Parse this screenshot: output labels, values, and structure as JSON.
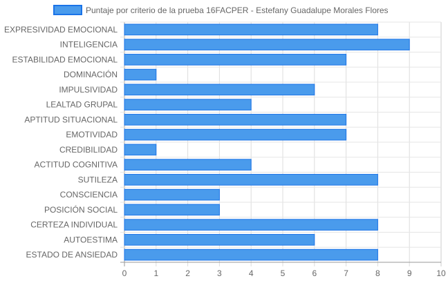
{
  "chart_data": {
    "type": "bar",
    "orientation": "horizontal",
    "title": "",
    "legend_position": "top",
    "grid": true,
    "xlim": [
      0,
      10
    ],
    "x_ticks": [
      "0",
      "1",
      "2",
      "3",
      "4",
      "5",
      "6",
      "7",
      "8",
      "9",
      "10"
    ],
    "categories": [
      "EXPRESIVIDAD EMOCIONAL",
      "INTELIGENCIA",
      "ESTABILIDAD EMOCIONAL",
      "DOMINACIÓN",
      "IMPULSIVIDAD",
      "LEALTAD GRUPAL",
      "APTITUD SITUACIONAL",
      "EMOTIVIDAD",
      "CREDIBILIDAD",
      "ACTITUD COGNITIVA",
      "SUTILEZA",
      "CONSCIENCIA",
      "POSICIÓN SOCIAL",
      "CERTEZA INDIVIDUAL",
      "AUTOESTIMA",
      "ESTADO DE ANSIEDAD"
    ],
    "series": [
      {
        "name": "Puntaje por criterio de la prueba 16FACPER - Estefany Guadalupe Morales Flores",
        "color": "#4a9bec",
        "border_color": "#1a73e8",
        "values": [
          8,
          9,
          7,
          1,
          6,
          4,
          7,
          7,
          1,
          4,
          8,
          3,
          3,
          8,
          6,
          8
        ]
      }
    ]
  }
}
